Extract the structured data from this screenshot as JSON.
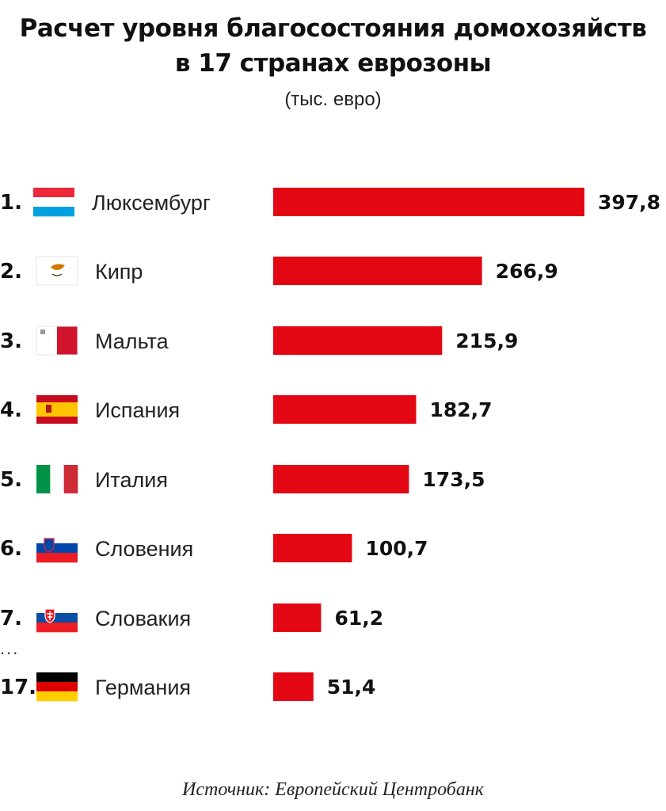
{
  "title_line1": "Расчет уровня благосостояния домохозяйств",
  "title_line2": "в 17 странах еврозоны",
  "subtitle": "(тыс. евро)",
  "ellipsis": "...",
  "source": "Источник: Европейский Центробанк",
  "colors": {
    "bar": "#e30613",
    "text": "#111111"
  },
  "chart_data": {
    "type": "bar",
    "orientation": "horizontal",
    "title": "Расчет уровня благосостояния домохозяйств в 17 странах еврозоны",
    "unit": "(тыс. евро)",
    "categories": [
      "Люксембург",
      "Кипр",
      "Мальта",
      "Испания",
      "Италия",
      "Словения",
      "Словакия",
      "Германия"
    ],
    "ranks": [
      "1.",
      "2.",
      "3.",
      "4.",
      "5.",
      "6.",
      "7.",
      "17."
    ],
    "value_labels": [
      "397,8",
      "266,9",
      "215,9",
      "182,7",
      "173,5",
      "100,7",
      "61,2",
      "51,4"
    ],
    "values": [
      397.8,
      266.9,
      215.9,
      182.7,
      173.5,
      100.7,
      61.2,
      51.4
    ],
    "flags": [
      "luxembourg-flag-icon",
      "cyprus-flag-icon",
      "malta-flag-icon",
      "spain-flag-icon",
      "italy-flag-icon",
      "slovenia-flag-icon",
      "slovakia-flag-icon",
      "germany-flag-icon"
    ],
    "xlim": [
      0,
      397.8
    ],
    "grid": false,
    "legend": "none"
  }
}
